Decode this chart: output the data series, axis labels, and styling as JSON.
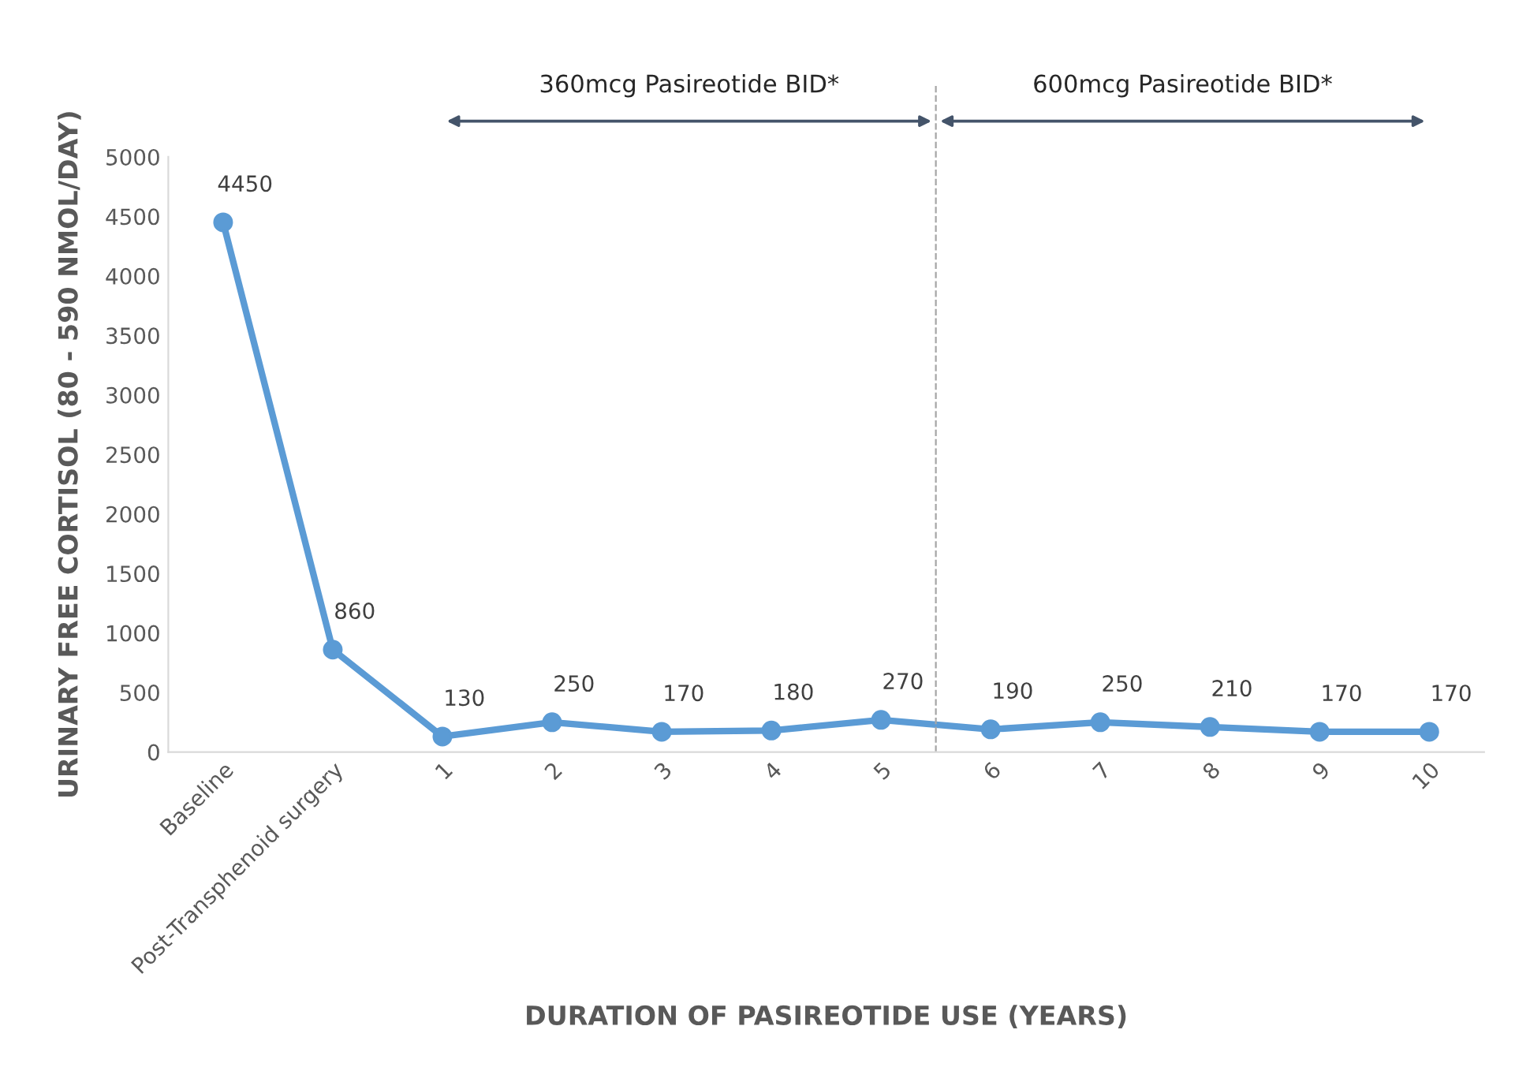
{
  "chart_data": {
    "type": "line",
    "xlabel": "DURATION OF PASIREOTIDE USE (YEARS)",
    "ylabel": "URINARY FREE CORTISOL (80 - 590 NMOL/DAY)",
    "categories": [
      "Baseline",
      "Post-Transphenoid surgery",
      "1",
      "2",
      "3",
      "4",
      "5",
      "6",
      "7",
      "8",
      "9",
      "10"
    ],
    "series": [
      {
        "color": "#5b9bd5",
        "values": [
          4450,
          860,
          130,
          250,
          170,
          180,
          270,
          190,
          250,
          210,
          170,
          170
        ]
      }
    ],
    "ylim": [
      0,
      5000
    ],
    "yticks": [
      0,
      500,
      1000,
      1500,
      2000,
      2500,
      3000,
      3500,
      4000,
      4500,
      5000
    ],
    "marker": "circle",
    "line_style": "solid",
    "grid": false,
    "legend": false,
    "data_labels": true,
    "annotations": [
      "360mcg Pasireotide BID*",
      "600mcg Pasireotide BID*"
    ]
  }
}
